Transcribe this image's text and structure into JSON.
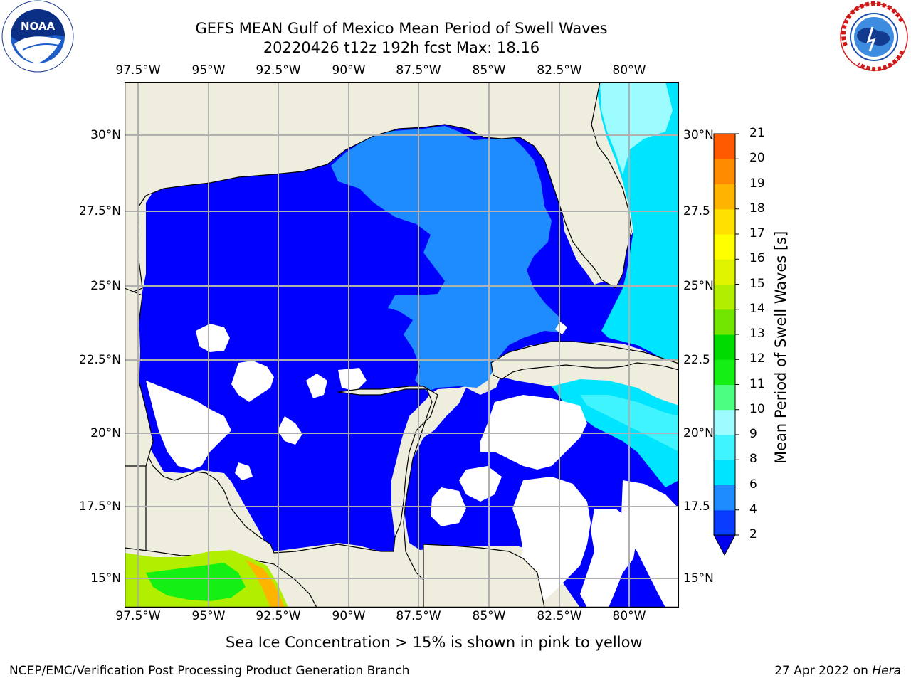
{
  "header": {
    "title_line1": "GEFS MEAN Gulf of Mexico Mean Period of Swell Waves",
    "title_line2": "20220426 t12z 192h fcst   Max: 18.16"
  },
  "logos": {
    "left": "NOAA",
    "left_ring_text": "NATIONAL OCEANIC AND ATMOSPHERIC ADMINISTRATION · U.S. DEPARTMENT OF COMMERCE",
    "right_ring_text": "NATIONAL WEATHER SERVICE"
  },
  "map": {
    "lon_ticks": [
      "97.5°W",
      "95°W",
      "92.5°W",
      "90°W",
      "87.5°W",
      "85°W",
      "82.5°W",
      "80°W"
    ],
    "lat_ticks_left": [
      "30°N",
      "27.5°N",
      "25°N",
      "22.5°N",
      "20°N",
      "17.5°N",
      "15°N"
    ],
    "lat_ticks_right": [
      "30°N",
      "27.5",
      "25°N",
      "22.5",
      "20°N",
      "17.5",
      "15°N"
    ],
    "lon_range": [
      -98.1,
      -78.3
    ],
    "lat_range": [
      14.0,
      31.9
    ],
    "land_color": "#efedde",
    "grid_color": "#b0b0b0"
  },
  "colorbar": {
    "label": "Mean Period of Swell Waves [s]",
    "ticks": [
      "2",
      "4",
      "6",
      "8",
      "9",
      "10",
      "11",
      "12",
      "13",
      "14",
      "15",
      "16",
      "17",
      "18",
      "19",
      "20",
      "21"
    ],
    "colors": [
      "#0a3cff",
      "#1e8cff",
      "#00e5ff",
      "#40f4ff",
      "#9dfcff",
      "#4cff80",
      "#14f014",
      "#00dc00",
      "#72e600",
      "#b2ee00",
      "#e0f400",
      "#ffff00",
      "#ffe000",
      "#ffb400",
      "#ff8c00",
      "#ff5a00",
      "#ff2800",
      "#ff0000"
    ],
    "extend_color": "#0000ee"
  },
  "note": "Sea Ice Concentration > 15% is shown in pink to yellow",
  "footer": {
    "left": "NCEP/EMC/Verification Post Processing Product Generation Branch",
    "right_prefix": "27 Apr 2022 on ",
    "right_host": "Hera"
  }
}
